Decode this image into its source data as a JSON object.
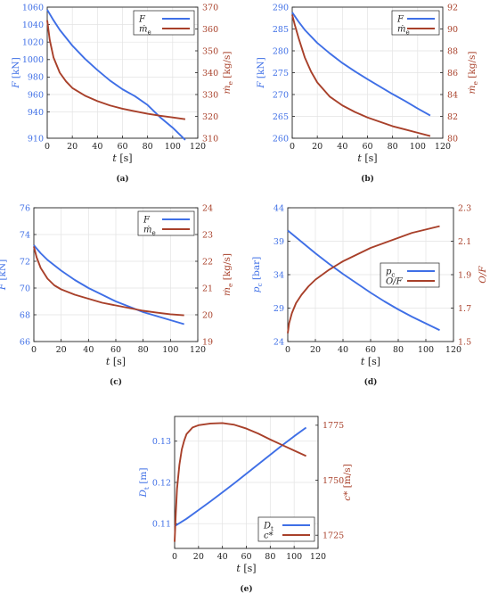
{
  "colors": {
    "blue": "#3f6fe6",
    "red": "#a8402a",
    "axis": "#222222",
    "grid": "#e3e3e3"
  },
  "chart_data": [
    {
      "type": "line",
      "id": "a",
      "panel_label": "(a)",
      "xlabel": "t [s]",
      "ylabel_left": "F [kN]",
      "ylabel_right": "ṁ_e [kg/s]",
      "xlim": [
        0,
        120
      ],
      "xticks": [
        "0",
        "20",
        "40",
        "60",
        "80",
        "100",
        "120"
      ],
      "ylim_left": [
        910,
        1060
      ],
      "yticks_left": [
        "910",
        "940",
        "960",
        "980",
        "1000",
        "1020",
        "1040",
        "1060"
      ],
      "ylim_right": [
        310,
        370
      ],
      "yticks_right": [
        "310",
        "320",
        "330",
        "340",
        "350",
        "360",
        "370"
      ],
      "grid": true,
      "legend_position": "top-right",
      "series": [
        {
          "name": "F",
          "axis": "left",
          "color": "blue",
          "x": [
            0,
            5,
            10,
            20,
            30,
            40,
            50,
            60,
            70,
            80,
            90,
            100,
            110
          ],
          "y": [
            1057,
            1045,
            1034,
            1016,
            1001,
            988,
            976,
            966,
            958,
            948,
            934,
            922,
            908
          ]
        },
        {
          "name": "ṁ_e",
          "axis": "right",
          "color": "red",
          "x": [
            0,
            2,
            5,
            10,
            15,
            20,
            30,
            40,
            50,
            60,
            70,
            80,
            90,
            100,
            110
          ],
          "y": [
            364,
            355,
            347,
            340,
            336,
            333,
            329.5,
            327,
            325,
            323.5,
            322.3,
            321.2,
            320.3,
            319.5,
            318.7
          ]
        }
      ]
    },
    {
      "type": "line",
      "id": "b",
      "panel_label": "(b)",
      "xlabel": "t [s]",
      "ylabel_left": "F [kN]",
      "ylabel_right": "ṁ_e [kg/s]",
      "xlim": [
        0,
        120
      ],
      "xticks": [
        "0",
        "20",
        "40",
        "60",
        "80",
        "100",
        "120"
      ],
      "ylim_left": [
        260,
        290
      ],
      "yticks_left": [
        "260",
        "265",
        "270",
        "275",
        "280",
        "285",
        "290"
      ],
      "ylim_right": [
        80,
        92
      ],
      "yticks_right": [
        "80",
        "82",
        "84",
        "86",
        "88",
        "90",
        "92"
      ],
      "grid": true,
      "legend_position": "top-right",
      "series": [
        {
          "name": "F",
          "axis": "left",
          "color": "blue",
          "x": [
            0,
            5,
            10,
            20,
            30,
            40,
            50,
            60,
            70,
            80,
            90,
            100,
            110
          ],
          "y": [
            288.8,
            286.7,
            284.8,
            281.8,
            279.4,
            277.2,
            275.3,
            273.5,
            271.8,
            270.1,
            268.5,
            266.8,
            265.2
          ]
        },
        {
          "name": "ṁ_e",
          "axis": "right",
          "color": "red",
          "x": [
            0,
            2,
            5,
            10,
            15,
            20,
            30,
            40,
            50,
            60,
            70,
            80,
            90,
            100,
            110
          ],
          "y": [
            91.3,
            90.4,
            89.2,
            87.4,
            86.1,
            85.1,
            83.8,
            83.0,
            82.4,
            81.9,
            81.5,
            81.1,
            80.8,
            80.5,
            80.2
          ]
        }
      ]
    },
    {
      "type": "line",
      "id": "c",
      "panel_label": "(c)",
      "xlabel": "t [s]",
      "ylabel_left": "F [kN]",
      "ylabel_right": "ṁ_e [kg/s]",
      "xlim": [
        0,
        120
      ],
      "xticks": [
        "0",
        "20",
        "40",
        "60",
        "80",
        "100",
        "120"
      ],
      "ylim_left": [
        66,
        76
      ],
      "yticks_left": [
        "66",
        "68",
        "70",
        "72",
        "74",
        "76"
      ],
      "ylim_right": [
        19,
        24
      ],
      "yticks_right": [
        "19",
        "20",
        "21",
        "22",
        "23",
        "24"
      ],
      "grid": true,
      "legend_position": "top-right",
      "series": [
        {
          "name": "F",
          "axis": "left",
          "color": "blue",
          "x": [
            0,
            5,
            10,
            20,
            30,
            40,
            50,
            60,
            70,
            80,
            90,
            100,
            110
          ],
          "y": [
            73.2,
            72.6,
            72.1,
            71.3,
            70.6,
            70.0,
            69.5,
            69.0,
            68.6,
            68.2,
            67.9,
            67.6,
            67.3
          ]
        },
        {
          "name": "ṁ_e",
          "axis": "right",
          "color": "red",
          "x": [
            0,
            2,
            5,
            10,
            15,
            20,
            30,
            40,
            50,
            60,
            70,
            80,
            90,
            100,
            110
          ],
          "y": [
            22.55,
            22.15,
            21.75,
            21.35,
            21.1,
            20.95,
            20.75,
            20.6,
            20.45,
            20.35,
            20.25,
            20.15,
            20.08,
            20.02,
            19.98
          ]
        }
      ]
    },
    {
      "type": "line",
      "id": "d",
      "panel_label": "(d)",
      "xlabel": "t [s]",
      "ylabel_left": "p_c [bar]",
      "ylabel_right": "O/F",
      "xlim": [
        0,
        120
      ],
      "xticks": [
        "0",
        "20",
        "40",
        "60",
        "80",
        "100",
        "120"
      ],
      "ylim_left": [
        24,
        44
      ],
      "yticks_left": [
        "24",
        "29",
        "34",
        "39",
        "44"
      ],
      "ylim_right": [
        1.5,
        2.3
      ],
      "yticks_right": [
        "1.5",
        "1.7",
        "1.9",
        "2.1",
        "2.3"
      ],
      "grid": true,
      "legend_position": "center-right",
      "series": [
        {
          "name": "p_c",
          "axis": "left",
          "color": "blue",
          "x": [
            0,
            10,
            20,
            30,
            40,
            50,
            60,
            70,
            80,
            90,
            100,
            110
          ],
          "y": [
            40.6,
            38.9,
            37.2,
            35.6,
            34.1,
            32.7,
            31.3,
            30.0,
            28.8,
            27.7,
            26.7,
            25.7
          ]
        },
        {
          "name": "O/F",
          "axis": "right",
          "color": "red",
          "x": [
            0,
            1,
            3,
            6,
            10,
            15,
            20,
            30,
            40,
            50,
            60,
            70,
            80,
            90,
            100,
            110
          ],
          "y": [
            1.55,
            1.61,
            1.67,
            1.73,
            1.78,
            1.83,
            1.87,
            1.93,
            1.98,
            2.02,
            2.06,
            2.09,
            2.12,
            2.15,
            2.17,
            2.19
          ]
        }
      ]
    },
    {
      "type": "line",
      "id": "e",
      "panel_label": "(e)",
      "xlabel": "t [s]",
      "ylabel_left": "D_t [m]",
      "ylabel_right": "c* [m/s]",
      "xlim": [
        0,
        120
      ],
      "xticks": [
        "0",
        "20",
        "40",
        "60",
        "80",
        "100",
        "120"
      ],
      "ylim_left": [
        0.104,
        0.136
      ],
      "yticks_left": [
        "0.11",
        "0.12",
        "0.13"
      ],
      "ylim_right": [
        1719,
        1779
      ],
      "yticks_right": [
        "1725",
        "1750",
        "1775"
      ],
      "grid": true,
      "legend_position": "bottom-right",
      "series": [
        {
          "name": "D_t",
          "axis": "left",
          "color": "blue",
          "x": [
            0,
            10,
            20,
            30,
            40,
            50,
            60,
            70,
            80,
            90,
            100,
            110
          ],
          "y": [
            0.1094,
            0.1112,
            0.1133,
            0.1154,
            0.1176,
            0.1198,
            0.1221,
            0.1244,
            0.1267,
            0.129,
            0.1312,
            0.1333
          ]
        },
        {
          "name": "c*",
          "axis": "right",
          "color": "red",
          "x": [
            0,
            1,
            2,
            4,
            6,
            8,
            10,
            15,
            20,
            30,
            40,
            50,
            60,
            70,
            80,
            90,
            100,
            110
          ],
          "y": [
            1722,
            1735,
            1746,
            1757,
            1764,
            1768,
            1771,
            1774,
            1775,
            1775.8,
            1776,
            1775.2,
            1773.5,
            1771.2,
            1768.5,
            1766,
            1763.5,
            1761
          ]
        }
      ]
    }
  ]
}
